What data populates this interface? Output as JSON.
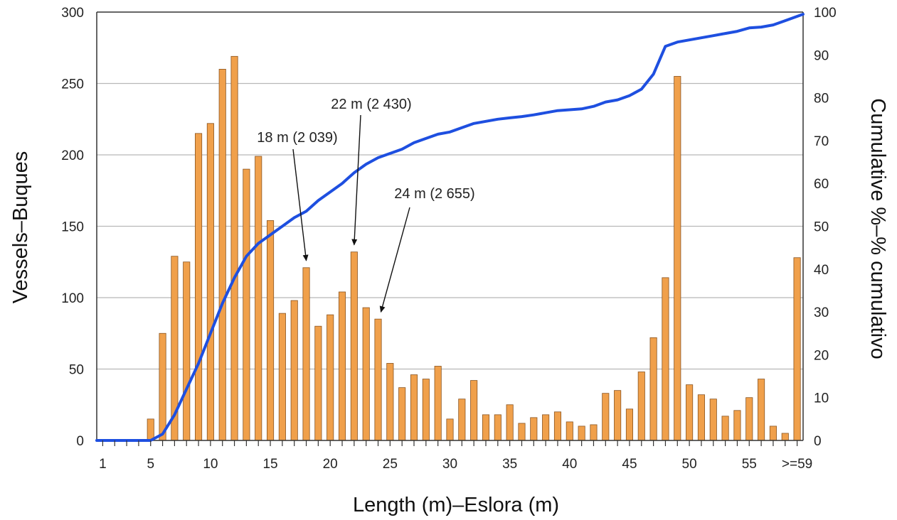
{
  "chart_data": {
    "type": "bar",
    "title": "",
    "xlabel": "Length (m)–Eslora (m)",
    "ylabel": "Vessels–Buques",
    "y2label": "Cumulative %–% cumulativo",
    "categories": [
      "1",
      "2",
      "3",
      "4",
      "5",
      "6",
      "7",
      "8",
      "9",
      "10",
      "11",
      "12",
      "13",
      "14",
      "15",
      "16",
      "17",
      "18",
      "19",
      "20",
      "21",
      "22",
      "23",
      "24",
      "25",
      "26",
      "27",
      "28",
      "29",
      "30",
      "31",
      "32",
      "33",
      "34",
      "35",
      "36",
      "37",
      "38",
      "39",
      "40",
      "41",
      "42",
      "43",
      "44",
      "45",
      "46",
      "47",
      "48",
      "49",
      "50",
      "51",
      "52",
      "53",
      "54",
      "55",
      "56",
      "57",
      "58",
      ">=59"
    ],
    "x_tick_labels": [
      "1",
      "5",
      "10",
      "15",
      "20",
      "25",
      "30",
      "35",
      "40",
      "45",
      "50",
      "55",
      ">=59"
    ],
    "ylim": [
      0,
      300
    ],
    "y_ticks": [
      "0",
      "50",
      "100",
      "150",
      "200",
      "250",
      "300"
    ],
    "y2lim": [
      0,
      100
    ],
    "y2_ticks": [
      "0",
      "10",
      "20",
      "30",
      "40",
      "50",
      "60",
      "70",
      "80",
      "90",
      "100"
    ],
    "grid": true,
    "bar_color": "#f0a04b",
    "line_color": "#1e4fe0",
    "series": [
      {
        "type": "bar",
        "values": [
          0,
          0,
          0,
          0,
          15,
          75,
          129,
          125,
          215,
          222,
          260,
          269,
          190,
          199,
          154,
          89,
          98,
          121,
          80,
          88,
          104,
          132,
          93,
          85,
          54,
          37,
          46,
          43,
          52,
          15,
          29,
          42,
          18,
          18,
          25,
          12,
          16,
          18,
          20,
          13,
          10,
          11,
          33,
          35,
          22,
          48,
          72,
          114,
          255,
          39,
          32,
          29,
          17,
          21,
          30,
          43,
          10,
          5,
          128
        ]
      },
      {
        "type": "line",
        "axis": "right",
        "values": [
          0,
          0,
          0,
          0,
          0,
          1.5,
          6,
          12,
          18,
          25,
          32,
          38,
          43,
          46,
          48,
          50,
          52,
          53.5,
          56,
          58,
          60,
          62.5,
          64.5,
          66,
          67,
          68,
          69.5,
          70.5,
          71.5,
          72,
          73,
          74,
          74.5,
          75,
          75.3,
          75.6,
          76,
          76.5,
          77,
          77.2,
          77.4,
          78,
          79,
          79.5,
          80.5,
          82,
          85.5,
          92,
          93,
          93.5,
          94,
          94.5,
          95,
          95.5,
          96.3,
          96.5,
          97,
          98,
          99.5
        ]
      }
    ],
    "annotations": [
      {
        "text": "18 m (2 039)",
        "category": "18"
      },
      {
        "text": "22 m (2 430)",
        "category": "22"
      },
      {
        "text": "24 m (2 655)",
        "category": "24"
      }
    ]
  }
}
